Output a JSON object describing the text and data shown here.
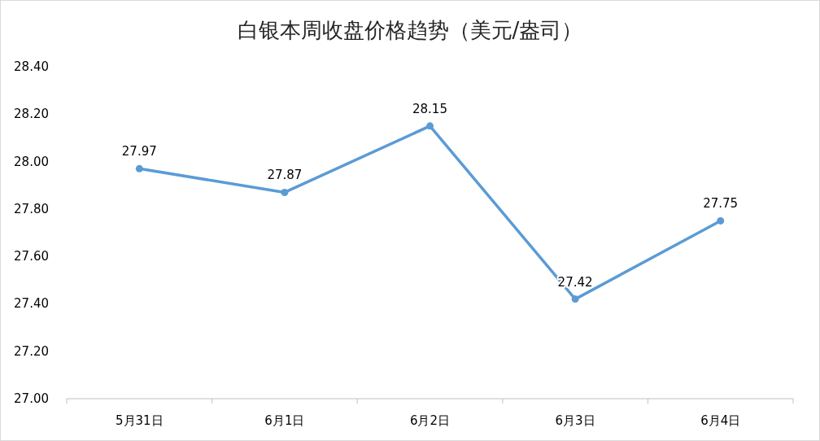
{
  "chart_data": {
    "type": "line",
    "title": "白银本周收盘价格趋势（美元/盎司）",
    "categories": [
      "5月31日",
      "6月1日",
      "6月2日",
      "6月3日",
      "6月4日"
    ],
    "series": [
      {
        "color": "#5b9bd5",
        "values": [
          27.97,
          27.87,
          28.15,
          27.42,
          27.75
        ]
      }
    ],
    "ylim": [
      27.0,
      28.4
    ],
    "yticks": [
      {
        "value": 27.0,
        "label": "27.00"
      },
      {
        "value": 27.2,
        "label": "27.20"
      },
      {
        "value": 27.4,
        "label": "27.40"
      },
      {
        "value": 27.6,
        "label": "27.60"
      },
      {
        "value": 27.8,
        "label": "27.80"
      },
      {
        "value": 28.0,
        "label": "28.00"
      },
      {
        "value": 28.2,
        "label": "28.20"
      },
      {
        "value": 28.4,
        "label": "28.40"
      }
    ],
    "data_labels": true,
    "marker": "circle",
    "line_style": "solid"
  }
}
